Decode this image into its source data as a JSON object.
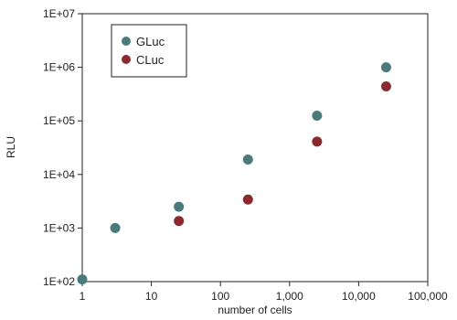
{
  "chart_data": {
    "type": "scatter",
    "xlabel": "number of cells",
    "ylabel": "RLU",
    "x_scale": "log",
    "y_scale": "log",
    "xlim": [
      1,
      100000
    ],
    "ylim": [
      100,
      10000000
    ],
    "x_ticks": [
      {
        "value": 1,
        "label": "1"
      },
      {
        "value": 10,
        "label": "10"
      },
      {
        "value": 100,
        "label": "100"
      },
      {
        "value": 1000,
        "label": "1,000"
      },
      {
        "value": 10000,
        "label": "10,000"
      },
      {
        "value": 100000,
        "label": "100,000"
      }
    ],
    "y_ticks": [
      {
        "value": 100,
        "label": "1E+02"
      },
      {
        "value": 1000,
        "label": "1E+03"
      },
      {
        "value": 10000,
        "label": "1E+04"
      },
      {
        "value": 100000,
        "label": "1E+05"
      },
      {
        "value": 1000000,
        "label": "1E+06"
      },
      {
        "value": 10000000,
        "label": "1E+07"
      }
    ],
    "grid": false,
    "legend_position": "top-left",
    "series": [
      {
        "name": "GLuc",
        "color": "#4a7a7a",
        "points": [
          {
            "x": 1,
            "y": 110
          },
          {
            "x": 3,
            "y": 1000
          },
          {
            "x": 25,
            "y": 2500
          },
          {
            "x": 250,
            "y": 19000
          },
          {
            "x": 2500,
            "y": 125000
          },
          {
            "x": 25000,
            "y": 1000000
          }
        ]
      },
      {
        "name": "CLuc",
        "color": "#8b2a2e",
        "points": [
          {
            "x": 25,
            "y": 1350
          },
          {
            "x": 250,
            "y": 3400
          },
          {
            "x": 2500,
            "y": 41000
          },
          {
            "x": 25000,
            "y": 440000
          }
        ]
      }
    ]
  }
}
